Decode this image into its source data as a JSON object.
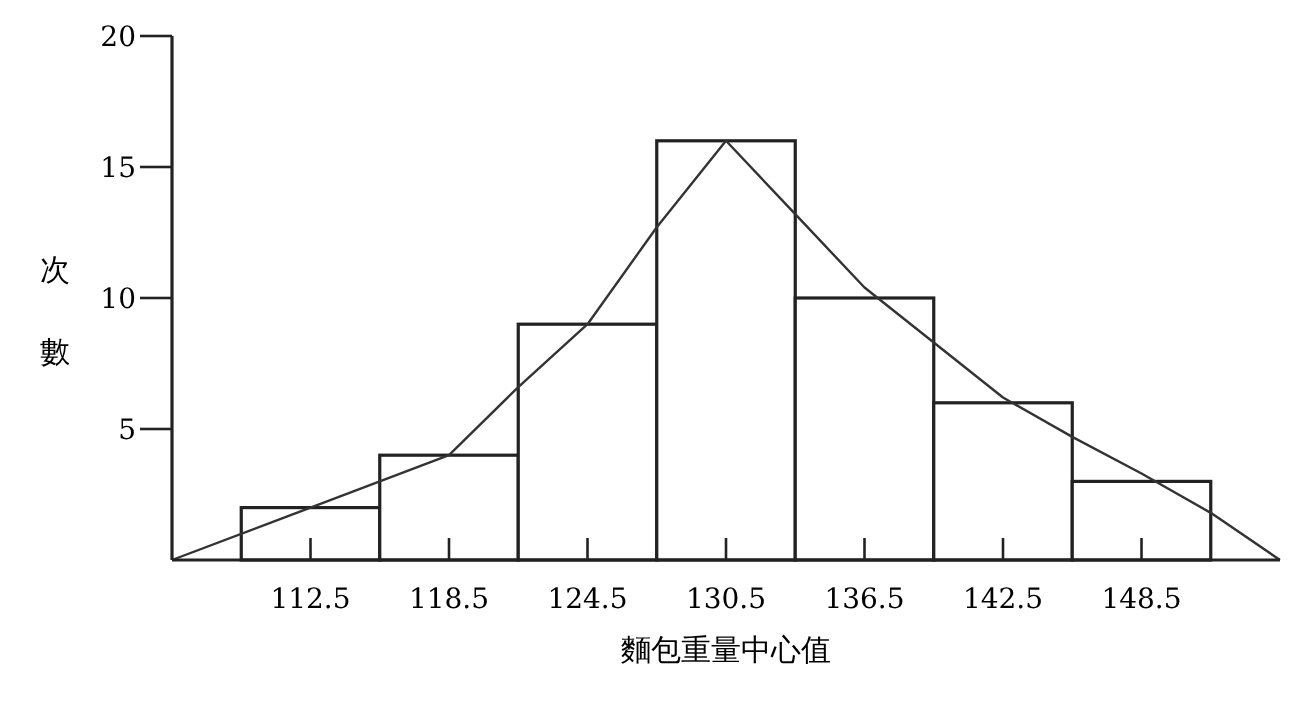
{
  "chart_data": {
    "type": "histogram",
    "xlabel": "麵包重量中心值",
    "ylabel": "次數",
    "bins": [
      109.5,
      115.5,
      121.5,
      127.5,
      133.5,
      139.5,
      145.5,
      151.5
    ],
    "values": [
      2,
      4,
      9,
      16,
      10,
      6,
      3
    ],
    "color": "#ffffff",
    "series": [
      {
        "type": "line",
        "color": "#333333",
        "x": [
          106.5,
          112.5,
          115.5,
          118.5,
          121.5,
          124.5,
          127.5,
          130.5,
          133.5,
          136.5,
          139.5,
          142.5,
          145.5,
          148.5,
          151.5,
          154.5
        ],
        "values": [
          0,
          2,
          3,
          4,
          6.6,
          9,
          12.7,
          16,
          13.2,
          10.4,
          8.3,
          6.2,
          4.7,
          3.3,
          1.8,
          0
        ]
      }
    ],
    "xlim": [
      106.5,
      154.5
    ],
    "ylim": [
      0,
      20
    ],
    "xticks": [
      112.5,
      118.5,
      124.5,
      130.5,
      136.5,
      142.5,
      148.5
    ],
    "yticks": [
      5,
      10,
      15,
      20
    ],
    "grid": false
  }
}
